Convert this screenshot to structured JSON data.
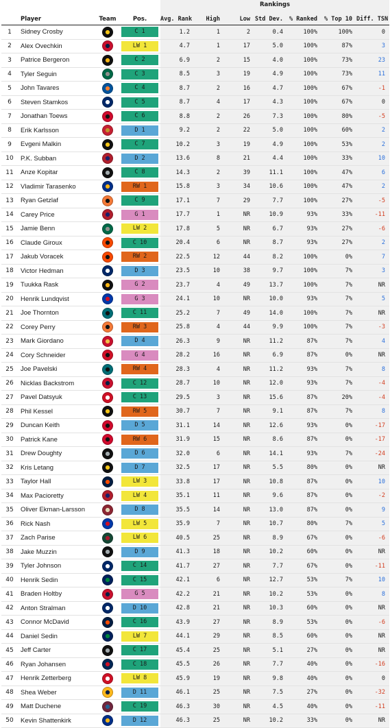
{
  "headers": {
    "group": "Rankings",
    "player": "Player",
    "team": "Team",
    "pos": "Pos.",
    "avg": "Avg. Rank",
    "high": "High",
    "low": "Low",
    "std": "Std Dev.",
    "ranked": "% Ranked",
    "top10": "% Top 10",
    "diff": "Diff. TSN"
  },
  "colors": {
    "C": "#1fa37a",
    "LW": "#f2e63a",
    "RW": "#e0661c",
    "D": "#5aa7d6",
    "G": "#d98bbf",
    "diff_pos": "#2a6fdb",
    "diff_neg": "#d23c1e"
  },
  "rows": [
    {
      "n": "1",
      "name": "Sidney Crosby",
      "team": "PIT",
      "tc": "#111111",
      "tc2": "#f5c518",
      "pt": "C",
      "pos": "C 1",
      "avg": "1.2",
      "high": "1",
      "low": "2",
      "std": "0.4",
      "ranked": "100%",
      "top10": "100%",
      "diff": "0",
      "ds": "0"
    },
    {
      "n": "2",
      "name": "Alex Ovechkin",
      "team": "WSH",
      "tc": "#c8102e",
      "tc2": "#041e42",
      "pt": "LW",
      "pos": "LW 1",
      "avg": "4.7",
      "high": "1",
      "low": "17",
      "std": "5.0",
      "ranked": "100%",
      "top10": "87%",
      "diff": "3",
      "ds": "+"
    },
    {
      "n": "3",
      "name": "Patrice Bergeron",
      "team": "BOS",
      "tc": "#111111",
      "tc2": "#fcb514",
      "pt": "C",
      "pos": "C 2",
      "avg": "6.9",
      "high": "2",
      "low": "15",
      "std": "4.0",
      "ranked": "100%",
      "top10": "73%",
      "diff": "23",
      "ds": "+"
    },
    {
      "n": "4",
      "name": "Tyler Seguin",
      "team": "DAL",
      "tc": "#006847",
      "tc2": "#8f8f8c",
      "pt": "C",
      "pos": "C 3",
      "avg": "8.5",
      "high": "3",
      "low": "19",
      "std": "4.9",
      "ranked": "100%",
      "top10": "73%",
      "diff": "11",
      "ds": "+"
    },
    {
      "n": "5",
      "name": "John Tavares",
      "team": "NYI",
      "tc": "#00539b",
      "tc2": "#f47d30",
      "pt": "C",
      "pos": "C 4",
      "avg": "8.7",
      "high": "2",
      "low": "16",
      "std": "4.7",
      "ranked": "100%",
      "top10": "67%",
      "diff": "-1",
      "ds": "-"
    },
    {
      "n": "6",
      "name": "Steven Stamkos",
      "team": "TBL",
      "tc": "#002868",
      "tc2": "#ffffff",
      "pt": "C",
      "pos": "C 5",
      "avg": "8.7",
      "high": "4",
      "low": "17",
      "std": "4.3",
      "ranked": "100%",
      "top10": "67%",
      "diff": "0",
      "ds": "0"
    },
    {
      "n": "7",
      "name": "Jonathan Toews",
      "team": "CHI",
      "tc": "#cf0a2c",
      "tc2": "#111111",
      "pt": "C",
      "pos": "C 6",
      "avg": "8.8",
      "high": "2",
      "low": "26",
      "std": "7.3",
      "ranked": "100%",
      "top10": "80%",
      "diff": "-5",
      "ds": "-"
    },
    {
      "n": "8",
      "name": "Erik Karlsson",
      "team": "OTT",
      "tc": "#c52032",
      "tc2": "#c2912c",
      "pt": "D",
      "pos": "D 1",
      "avg": "9.2",
      "high": "2",
      "low": "22",
      "std": "5.0",
      "ranked": "100%",
      "top10": "60%",
      "diff": "2",
      "ds": "+"
    },
    {
      "n": "9",
      "name": "Evgeni Malkin",
      "team": "PIT",
      "tc": "#111111",
      "tc2": "#f5c518",
      "pt": "C",
      "pos": "C 7",
      "avg": "10.2",
      "high": "3",
      "low": "19",
      "std": "4.9",
      "ranked": "100%",
      "top10": "53%",
      "diff": "2",
      "ds": "+"
    },
    {
      "n": "10",
      "name": "P.K. Subban",
      "team": "MTL",
      "tc": "#af1e2d",
      "tc2": "#192168",
      "pt": "D",
      "pos": "D 2",
      "avg": "13.6",
      "high": "8",
      "low": "21",
      "std": "4.4",
      "ranked": "100%",
      "top10": "33%",
      "diff": "10",
      "ds": "+"
    },
    {
      "n": "11",
      "name": "Anze Kopitar",
      "team": "LAK",
      "tc": "#111111",
      "tc2": "#a2aaad",
      "pt": "C",
      "pos": "C 8",
      "avg": "14.3",
      "high": "2",
      "low": "39",
      "std": "11.1",
      "ranked": "100%",
      "top10": "47%",
      "diff": "6",
      "ds": "+"
    },
    {
      "n": "12",
      "name": "Vladimir Tarasenko",
      "team": "STL",
      "tc": "#002f87",
      "tc2": "#fcb514",
      "pt": "RW",
      "pos": "RW 1",
      "avg": "15.8",
      "high": "3",
      "low": "34",
      "std": "10.6",
      "ranked": "100%",
      "top10": "47%",
      "diff": "2",
      "ds": "+"
    },
    {
      "n": "13",
      "name": "Ryan Getzlaf",
      "team": "ANA",
      "tc": "#f47a38",
      "tc2": "#111111",
      "pt": "C",
      "pos": "C 9",
      "avg": "17.1",
      "high": "7",
      "low": "29",
      "std": "7.7",
      "ranked": "100%",
      "top10": "27%",
      "diff": "-5",
      "ds": "-"
    },
    {
      "n": "14",
      "name": "Carey Price",
      "team": "MTL",
      "tc": "#af1e2d",
      "tc2": "#192168",
      "pt": "G",
      "pos": "G 1",
      "avg": "17.7",
      "high": "1",
      "low": "NR",
      "std": "10.9",
      "ranked": "93%",
      "top10": "33%",
      "diff": "-11",
      "ds": "-"
    },
    {
      "n": "15",
      "name": "Jamie Benn",
      "team": "DAL",
      "tc": "#006847",
      "tc2": "#8f8f8c",
      "pt": "LW",
      "pos": "LW 2",
      "avg": "17.8",
      "high": "5",
      "low": "NR",
      "std": "6.7",
      "ranked": "93%",
      "top10": "27%",
      "diff": "-6",
      "ds": "-"
    },
    {
      "n": "16",
      "name": "Claude Giroux",
      "team": "PHI",
      "tc": "#f74902",
      "tc2": "#111111",
      "pt": "C",
      "pos": "C 10",
      "avg": "20.4",
      "high": "6",
      "low": "NR",
      "std": "8.7",
      "ranked": "93%",
      "top10": "27%",
      "diff": "2",
      "ds": "+"
    },
    {
      "n": "17",
      "name": "Jakub Voracek",
      "team": "PHI",
      "tc": "#f74902",
      "tc2": "#111111",
      "pt": "RW",
      "pos": "RW 2",
      "avg": "22.5",
      "high": "12",
      "low": "44",
      "std": "8.2",
      "ranked": "100%",
      "top10": "0%",
      "diff": "7",
      "ds": "+"
    },
    {
      "n": "18",
      "name": "Victor Hedman",
      "team": "TBL",
      "tc": "#002868",
      "tc2": "#ffffff",
      "pt": "D",
      "pos": "D 3",
      "avg": "23.5",
      "high": "10",
      "low": "38",
      "std": "9.7",
      "ranked": "100%",
      "top10": "7%",
      "diff": "3",
      "ds": "+"
    },
    {
      "n": "19",
      "name": "Tuukka Rask",
      "team": "BOS",
      "tc": "#111111",
      "tc2": "#fcb514",
      "pt": "G",
      "pos": "G 2",
      "avg": "23.7",
      "high": "4",
      "low": "49",
      "std": "13.7",
      "ranked": "100%",
      "top10": "7%",
      "diff": "NR",
      "ds": "0"
    },
    {
      "n": "20",
      "name": "Henrik Lundqvist",
      "team": "NYR",
      "tc": "#0038a8",
      "tc2": "#ce1126",
      "pt": "G",
      "pos": "G 3",
      "avg": "24.1",
      "high": "10",
      "low": "NR",
      "std": "10.0",
      "ranked": "93%",
      "top10": "7%",
      "diff": "5",
      "ds": "+"
    },
    {
      "n": "21",
      "name": "Joe Thornton",
      "team": "SJS",
      "tc": "#006d75",
      "tc2": "#111111",
      "pt": "C",
      "pos": "C 11",
      "avg": "25.2",
      "high": "7",
      "low": "49",
      "std": "14.0",
      "ranked": "100%",
      "top10": "7%",
      "diff": "NR",
      "ds": "0"
    },
    {
      "n": "22",
      "name": "Corey Perry",
      "team": "ANA",
      "tc": "#f47a38",
      "tc2": "#111111",
      "pt": "RW",
      "pos": "RW 3",
      "avg": "25.8",
      "high": "4",
      "low": "44",
      "std": "9.9",
      "ranked": "100%",
      "top10": "7%",
      "diff": "-3",
      "ds": "-"
    },
    {
      "n": "23",
      "name": "Mark Giordano",
      "team": "CGY",
      "tc": "#c8102e",
      "tc2": "#f1be48",
      "pt": "D",
      "pos": "D 4",
      "avg": "26.3",
      "high": "9",
      "low": "NR",
      "std": "11.2",
      "ranked": "87%",
      "top10": "7%",
      "diff": "4",
      "ds": "+"
    },
    {
      "n": "24",
      "name": "Cory Schneider",
      "team": "NJD",
      "tc": "#ce1126",
      "tc2": "#111111",
      "pt": "G",
      "pos": "G 4",
      "avg": "28.2",
      "high": "16",
      "low": "NR",
      "std": "6.9",
      "ranked": "87%",
      "top10": "0%",
      "diff": "NR",
      "ds": "0"
    },
    {
      "n": "25",
      "name": "Joe Pavelski",
      "team": "SJS",
      "tc": "#006d75",
      "tc2": "#111111",
      "pt": "RW",
      "pos": "RW 4",
      "avg": "28.3",
      "high": "4",
      "low": "NR",
      "std": "11.2",
      "ranked": "93%",
      "top10": "7%",
      "diff": "8",
      "ds": "+"
    },
    {
      "n": "26",
      "name": "Nicklas Backstrom",
      "team": "WSH",
      "tc": "#c8102e",
      "tc2": "#041e42",
      "pt": "C",
      "pos": "C 12",
      "avg": "28.7",
      "high": "10",
      "low": "NR",
      "std": "12.0",
      "ranked": "93%",
      "top10": "7%",
      "diff": "-4",
      "ds": "-"
    },
    {
      "n": "27",
      "name": "Pavel Datsyuk",
      "team": "DET",
      "tc": "#ce1126",
      "tc2": "#ffffff",
      "pt": "C",
      "pos": "C 13",
      "avg": "29.5",
      "high": "3",
      "low": "NR",
      "std": "15.6",
      "ranked": "87%",
      "top10": "20%",
      "diff": "-4",
      "ds": "-"
    },
    {
      "n": "28",
      "name": "Phil Kessel",
      "team": "PIT",
      "tc": "#111111",
      "tc2": "#f5c518",
      "pt": "RW",
      "pos": "RW 5",
      "avg": "30.7",
      "high": "7",
      "low": "NR",
      "std": "9.1",
      "ranked": "87%",
      "top10": "7%",
      "diff": "8",
      "ds": "+"
    },
    {
      "n": "29",
      "name": "Duncan Keith",
      "team": "CHI",
      "tc": "#cf0a2c",
      "tc2": "#111111",
      "pt": "D",
      "pos": "D 5",
      "avg": "31.1",
      "high": "14",
      "low": "NR",
      "std": "12.6",
      "ranked": "93%",
      "top10": "0%",
      "diff": "-17",
      "ds": "-"
    },
    {
      "n": "30",
      "name": "Patrick Kane",
      "team": "CHI",
      "tc": "#cf0a2c",
      "tc2": "#111111",
      "pt": "RW",
      "pos": "RW 6",
      "avg": "31.9",
      "high": "15",
      "low": "NR",
      "std": "8.6",
      "ranked": "87%",
      "top10": "0%",
      "diff": "-17",
      "ds": "-"
    },
    {
      "n": "31",
      "name": "Drew Doughty",
      "team": "LAK",
      "tc": "#111111",
      "tc2": "#a2aaad",
      "pt": "D",
      "pos": "D 6",
      "avg": "32.0",
      "high": "6",
      "low": "NR",
      "std": "14.1",
      "ranked": "93%",
      "top10": "7%",
      "diff": "-24",
      "ds": "-"
    },
    {
      "n": "32",
      "name": "Kris Letang",
      "team": "PIT",
      "tc": "#111111",
      "tc2": "#f5c518",
      "pt": "D",
      "pos": "D 7",
      "avg": "32.5",
      "high": "17",
      "low": "NR",
      "std": "5.5",
      "ranked": "80%",
      "top10": "0%",
      "diff": "NR",
      "ds": "0"
    },
    {
      "n": "33",
      "name": "Taylor Hall",
      "team": "EDM",
      "tc": "#041e42",
      "tc2": "#ff4c00",
      "pt": "LW",
      "pos": "LW 3",
      "avg": "33.8",
      "high": "17",
      "low": "NR",
      "std": "10.8",
      "ranked": "87%",
      "top10": "0%",
      "diff": "10",
      "ds": "+"
    },
    {
      "n": "34",
      "name": "Max Pacioretty",
      "team": "MTL",
      "tc": "#af1e2d",
      "tc2": "#192168",
      "pt": "LW",
      "pos": "LW 4",
      "avg": "35.1",
      "high": "11",
      "low": "NR",
      "std": "9.6",
      "ranked": "87%",
      "top10": "0%",
      "diff": "-2",
      "ds": "-"
    },
    {
      "n": "35",
      "name": "Oliver Ekman-Larsson",
      "team": "ARI",
      "tc": "#8c2633",
      "tc2": "#e2d6b5",
      "pt": "D",
      "pos": "D 8",
      "avg": "35.5",
      "high": "14",
      "low": "NR",
      "std": "13.0",
      "ranked": "87%",
      "top10": "0%",
      "diff": "9",
      "ds": "+"
    },
    {
      "n": "36",
      "name": "Rick Nash",
      "team": "NYR",
      "tc": "#0038a8",
      "tc2": "#ce1126",
      "pt": "LW",
      "pos": "LW 5",
      "avg": "35.9",
      "high": "7",
      "low": "NR",
      "std": "10.7",
      "ranked": "80%",
      "top10": "7%",
      "diff": "5",
      "ds": "+"
    },
    {
      "n": "37",
      "name": "Zach Parise",
      "team": "MIN",
      "tc": "#154734",
      "tc2": "#a6192e",
      "pt": "LW",
      "pos": "LW 6",
      "avg": "40.5",
      "high": "25",
      "low": "NR",
      "std": "8.9",
      "ranked": "67%",
      "top10": "0%",
      "diff": "-6",
      "ds": "-"
    },
    {
      "n": "38",
      "name": "Jake Muzzin",
      "team": "LAK",
      "tc": "#111111",
      "tc2": "#a2aaad",
      "pt": "D",
      "pos": "D 9",
      "avg": "41.3",
      "high": "18",
      "low": "NR",
      "std": "10.2",
      "ranked": "60%",
      "top10": "0%",
      "diff": "NR",
      "ds": "0"
    },
    {
      "n": "39",
      "name": "Tyler Johnson",
      "team": "TBL",
      "tc": "#002868",
      "tc2": "#ffffff",
      "pt": "C",
      "pos": "C 14",
      "avg": "41.7",
      "high": "27",
      "low": "NR",
      "std": "7.7",
      "ranked": "67%",
      "top10": "0%",
      "diff": "-11",
      "ds": "-"
    },
    {
      "n": "40",
      "name": "Henrik Sedin",
      "team": "VAN",
      "tc": "#00205b",
      "tc2": "#00843d",
      "pt": "C",
      "pos": "C 15",
      "avg": "42.1",
      "high": "6",
      "low": "NR",
      "std": "12.7",
      "ranked": "53%",
      "top10": "7%",
      "diff": "10",
      "ds": "+"
    },
    {
      "n": "41",
      "name": "Braden Holtby",
      "team": "WSH",
      "tc": "#c8102e",
      "tc2": "#041e42",
      "pt": "G",
      "pos": "G 5",
      "avg": "42.2",
      "high": "21",
      "low": "NR",
      "std": "10.2",
      "ranked": "53%",
      "top10": "0%",
      "diff": "8",
      "ds": "+"
    },
    {
      "n": "42",
      "name": "Anton Stralman",
      "team": "TBL",
      "tc": "#002868",
      "tc2": "#ffffff",
      "pt": "D",
      "pos": "D 10",
      "avg": "42.8",
      "high": "21",
      "low": "NR",
      "std": "10.3",
      "ranked": "60%",
      "top10": "0%",
      "diff": "NR",
      "ds": "0"
    },
    {
      "n": "43",
      "name": "Connor McDavid",
      "team": "EDM",
      "tc": "#041e42",
      "tc2": "#ff4c00",
      "pt": "C",
      "pos": "C 16",
      "avg": "43.9",
      "high": "27",
      "low": "NR",
      "std": "8.9",
      "ranked": "53%",
      "top10": "0%",
      "diff": "-6",
      "ds": "-"
    },
    {
      "n": "44",
      "name": "Daniel Sedin",
      "team": "VAN",
      "tc": "#00205b",
      "tc2": "#00843d",
      "pt": "LW",
      "pos": "LW 7",
      "avg": "44.1",
      "high": "29",
      "low": "NR",
      "std": "8.5",
      "ranked": "60%",
      "top10": "0%",
      "diff": "NR",
      "ds": "0"
    },
    {
      "n": "45",
      "name": "Jeff Carter",
      "team": "LAK",
      "tc": "#111111",
      "tc2": "#a2aaad",
      "pt": "C",
      "pos": "C 17",
      "avg": "45.4",
      "high": "25",
      "low": "NR",
      "std": "5.1",
      "ranked": "27%",
      "top10": "0%",
      "diff": "NR",
      "ds": "0"
    },
    {
      "n": "46",
      "name": "Ryan Johansen",
      "team": "CBJ",
      "tc": "#002654",
      "tc2": "#ce1126",
      "pt": "C",
      "pos": "C 18",
      "avg": "45.5",
      "high": "26",
      "low": "NR",
      "std": "7.7",
      "ranked": "40%",
      "top10": "0%",
      "diff": "-16",
      "ds": "-"
    },
    {
      "n": "47",
      "name": "Henrik Zetterberg",
      "team": "DET",
      "tc": "#ce1126",
      "tc2": "#ffffff",
      "pt": "LW",
      "pos": "LW 8",
      "avg": "45.9",
      "high": "19",
      "low": "NR",
      "std": "9.8",
      "ranked": "40%",
      "top10": "0%",
      "diff": "0",
      "ds": "0"
    },
    {
      "n": "48",
      "name": "Shea Weber",
      "team": "NSH",
      "tc": "#ffb81c",
      "tc2": "#041e42",
      "pt": "D",
      "pos": "D 11",
      "avg": "46.1",
      "high": "25",
      "low": "NR",
      "std": "7.5",
      "ranked": "27%",
      "top10": "0%",
      "diff": "-32",
      "ds": "-"
    },
    {
      "n": "49",
      "name": "Matt Duchene",
      "team": "COL",
      "tc": "#6f263d",
      "tc2": "#236192",
      "pt": "C",
      "pos": "C 19",
      "avg": "46.3",
      "high": "30",
      "low": "NR",
      "std": "4.5",
      "ranked": "40%",
      "top10": "0%",
      "diff": "-11",
      "ds": "-"
    },
    {
      "n": "50",
      "name": "Kevin Shattenkirk",
      "team": "STL",
      "tc": "#002f87",
      "tc2": "#fcb514",
      "pt": "D",
      "pos": "D 12",
      "avg": "46.3",
      "high": "25",
      "low": "NR",
      "std": "10.2",
      "ranked": "33%",
      "top10": "0%",
      "diff": "NR",
      "ds": "0"
    }
  ]
}
